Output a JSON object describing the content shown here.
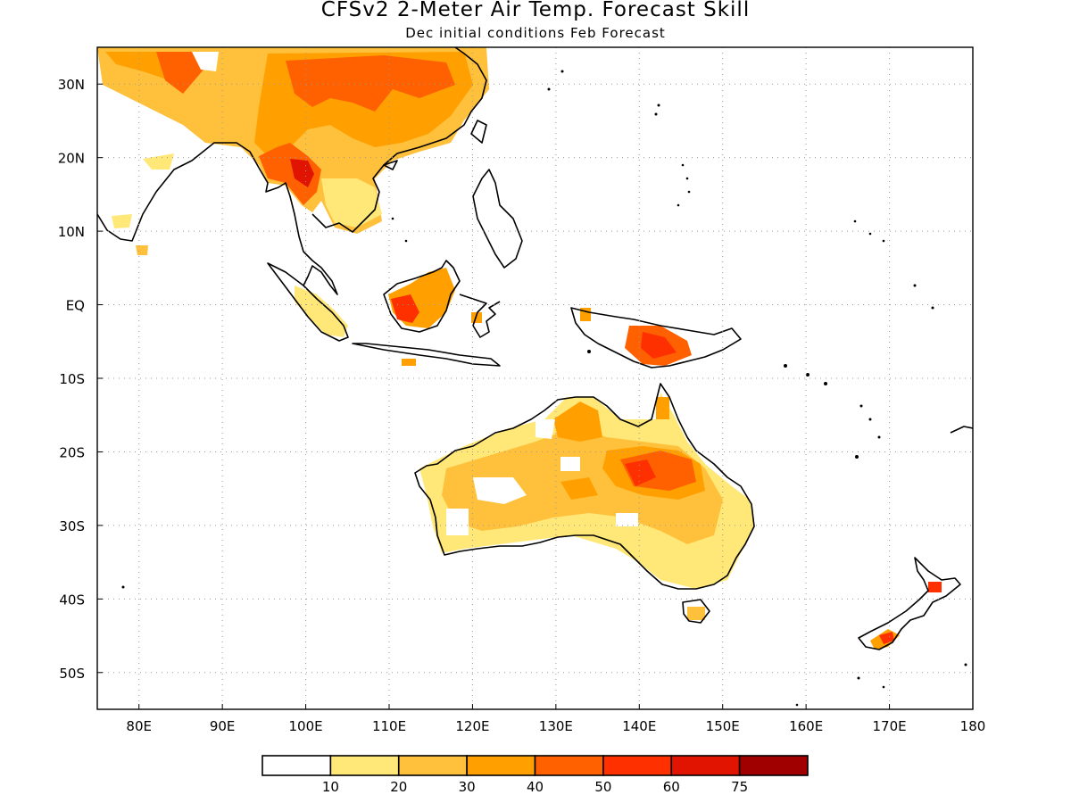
{
  "title": "CFSv2 2-Meter Air Temp. Forecast Skill",
  "subtitle": "Dec initial conditions  Feb Forecast",
  "map": {
    "lon_range": [
      75,
      180
    ],
    "lat_range": [
      -55,
      35
    ],
    "lat_ticks": [
      {
        "value": 30,
        "label": "30N"
      },
      {
        "value": 20,
        "label": "20N"
      },
      {
        "value": 10,
        "label": "10N"
      },
      {
        "value": 0,
        "label": "EQ"
      },
      {
        "value": -10,
        "label": "10S"
      },
      {
        "value": -20,
        "label": "20S"
      },
      {
        "value": -30,
        "label": "30S"
      },
      {
        "value": -40,
        "label": "40S"
      },
      {
        "value": -50,
        "label": "50S"
      }
    ],
    "lon_ticks": [
      {
        "value": 80,
        "label": "80E"
      },
      {
        "value": 90,
        "label": "90E"
      },
      {
        "value": 100,
        "label": "100E"
      },
      {
        "value": 110,
        "label": "110E"
      },
      {
        "value": 120,
        "label": "120E"
      },
      {
        "value": 130,
        "label": "130E"
      },
      {
        "value": 140,
        "label": "140E"
      },
      {
        "value": 150,
        "label": "150E"
      },
      {
        "value": 160,
        "label": "160E"
      },
      {
        "value": 170,
        "label": "170E"
      },
      {
        "value": 180,
        "label": "180"
      }
    ],
    "gridlines": true
  },
  "colorbar": {
    "colors": [
      "#ffffff",
      "#ffe878",
      "#ffc03c",
      "#ffa000",
      "#ff6000",
      "#ff3000",
      "#e01400",
      "#a00000"
    ],
    "labels": [
      "10",
      "20",
      "30",
      "40",
      "50",
      "60",
      "75"
    ]
  }
}
